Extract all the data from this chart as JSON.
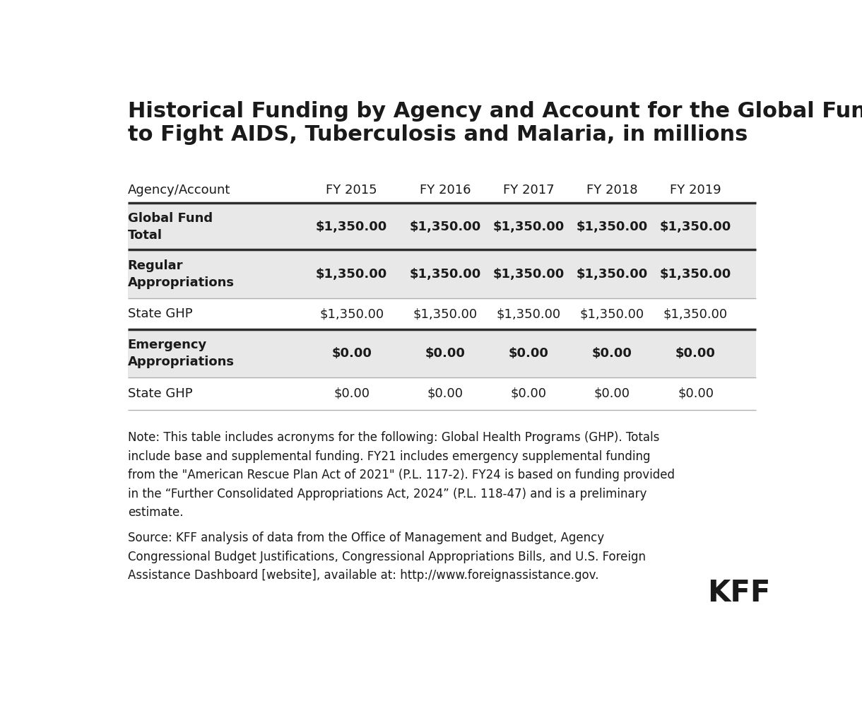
{
  "title": "Historical Funding by Agency and Account for the Global Fund\nto Fight AIDS, Tuberculosis and Malaria, in millions",
  "columns": [
    "Agency/Account",
    "FY 2015",
    "FY 2016",
    "FY 2017",
    "FY 2018",
    "FY 2019"
  ],
  "rows": [
    {
      "label": "Global Fund\nTotal",
      "values": [
        "$1,350.00",
        "$1,350.00",
        "$1,350.00",
        "$1,350.00",
        "$1,350.00"
      ],
      "bold": true,
      "shaded": true,
      "group_start": true
    },
    {
      "label": "Regular\nAppropriations",
      "values": [
        "$1,350.00",
        "$1,350.00",
        "$1,350.00",
        "$1,350.00",
        "$1,350.00"
      ],
      "bold": true,
      "shaded": true,
      "group_start": true
    },
    {
      "label": "State GHP",
      "values": [
        "$1,350.00",
        "$1,350.00",
        "$1,350.00",
        "$1,350.00",
        "$1,350.00"
      ],
      "bold": false,
      "shaded": false,
      "group_start": false
    },
    {
      "label": "Emergency\nAppropriations",
      "values": [
        "$0.00",
        "$0.00",
        "$0.00",
        "$0.00",
        "$0.00"
      ],
      "bold": true,
      "shaded": true,
      "group_start": true
    },
    {
      "label": "State GHP",
      "values": [
        "$0.00",
        "$0.00",
        "$0.00",
        "$0.00",
        "$0.00"
      ],
      "bold": false,
      "shaded": false,
      "group_start": false
    }
  ],
  "note_text": "Note: This table includes acronyms for the following: Global Health Programs (GHP). Totals\ninclude base and supplemental funding. FY21 includes emergency supplemental funding\nfrom the \"American Rescue Plan Act of 2021\" (P.L. 117-2). FY24 is based on funding provided\nin the “Further Consolidated Appropriations Act, 2024” (P.L. 118-47) and is a preliminary\nestimate.",
  "source_text": "Source: KFF analysis of data from the Office of Management and Budget, Agency\nCongressional Budget Justifications, Congressional Appropriations Bills, and U.S. Foreign\nAssistance Dashboard [website], available at: http://www.foreignassistance.gov.",
  "bg_color": "#ffffff",
  "shaded_color": "#e8e8e8",
  "header_line_color": "#2d2d2d",
  "group_line_color": "#2d2d2d",
  "row_line_color": "#b0b0b0",
  "title_fontsize": 22,
  "header_fontsize": 13,
  "cell_fontsize": 13,
  "note_fontsize": 12,
  "kff_fontsize": 30
}
